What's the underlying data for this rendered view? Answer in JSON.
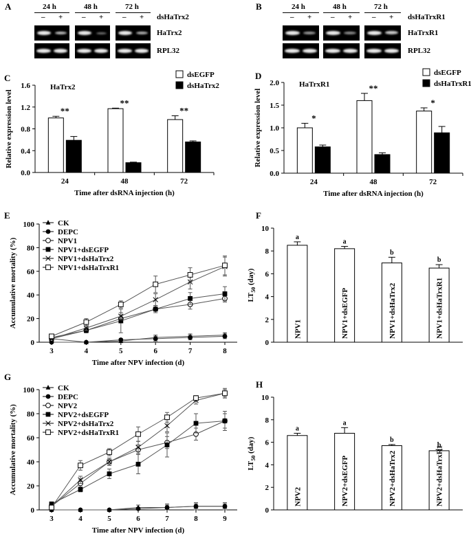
{
  "panels": {
    "A": {
      "letter": "A",
      "timepoints": [
        "24 h",
        "48 h",
        "72 h"
      ],
      "signs": [
        "–",
        "+"
      ],
      "treatment": "dsHaTrx2",
      "rows": [
        "HaTrx2",
        "RPL32"
      ]
    },
    "B": {
      "letter": "B",
      "timepoints": [
        "24 h",
        "48 h",
        "72 h"
      ],
      "signs": [
        "–",
        "+"
      ],
      "treatment": "dsHaTrxR1",
      "rows": [
        "HaTrxR1",
        "RPL32"
      ]
    }
  },
  "chart_data": [
    {
      "id": "C",
      "letter": "C",
      "type": "bar",
      "gene": "HaTrx2",
      "categories": [
        "24",
        "48",
        "72"
      ],
      "series": [
        {
          "name": "dsEGFP",
          "values": [
            1.0,
            1.17,
            0.97
          ],
          "errors": [
            0.03,
            0.01,
            0.07
          ]
        },
        {
          "name": "dsHaTrx2",
          "values": [
            0.59,
            0.18,
            0.56
          ],
          "errors": [
            0.07,
            0.01,
            0.02
          ]
        }
      ],
      "sig": [
        "**",
        "**",
        "**"
      ],
      "ylim": [
        0,
        1.6
      ],
      "yticks": [
        "0.0",
        "0.4",
        "0.8",
        "1.2",
        "1.6"
      ],
      "ylabel": "Relative expression level",
      "xlabel": "Time after dsRNA injection (h)"
    },
    {
      "id": "D",
      "letter": "D",
      "type": "bar",
      "gene": "HaTrxR1",
      "categories": [
        "24",
        "48",
        "72"
      ],
      "series": [
        {
          "name": "dsEGFP",
          "values": [
            1.0,
            1.6,
            1.37
          ],
          "errors": [
            0.1,
            0.16,
            0.07
          ]
        },
        {
          "name": "dsHaTrxR1",
          "values": [
            0.58,
            0.41,
            0.89
          ],
          "errors": [
            0.04,
            0.04,
            0.14
          ]
        }
      ],
      "sig": [
        "*",
        "**",
        "*"
      ],
      "ylim": [
        0,
        2.0
      ],
      "yticks": [
        "0.0",
        "0.5",
        "1.0",
        "1.5",
        "2.0"
      ],
      "ylabel": "Relative expression level",
      "xlabel": "Time after dsRNA injection (h)"
    },
    {
      "id": "E",
      "letter": "E",
      "type": "line",
      "x": [
        3,
        4,
        5,
        6,
        7,
        8
      ],
      "series": [
        {
          "name": "CK",
          "marker": "triangle",
          "values": [
            3,
            0,
            1,
            4,
            5,
            6
          ],
          "errors": [
            0,
            0,
            1,
            2,
            2,
            2
          ]
        },
        {
          "name": "DEPC",
          "marker": "dot",
          "values": [
            0,
            0,
            2,
            3,
            4,
            5
          ],
          "errors": [
            0,
            0,
            1,
            2,
            2,
            2
          ]
        },
        {
          "name": "NPV1",
          "marker": "open-circle",
          "values": [
            3,
            10,
            20,
            28,
            32,
            37
          ],
          "errors": [
            1,
            2,
            3,
            3,
            4,
            3
          ]
        },
        {
          "name": "NPV1+dsEGFP",
          "marker": "square",
          "values": [
            4,
            10,
            18,
            28,
            37,
            41
          ],
          "errors": [
            1,
            2,
            10,
            3,
            5,
            6
          ]
        },
        {
          "name": "NPV1+dsHaTrx2",
          "marker": "x",
          "values": [
            3,
            12,
            22,
            36,
            51,
            64
          ],
          "errors": [
            1,
            2,
            3,
            5,
            6,
            8
          ]
        },
        {
          "name": "NPV1+dsHaTrxR1",
          "marker": "open-square",
          "values": [
            5,
            17,
            32,
            49,
            57,
            65
          ],
          "errors": [
            1,
            3,
            3,
            7,
            6,
            8
          ]
        }
      ],
      "ylim": [
        0,
        100
      ],
      "yticks": [
        "0",
        "20",
        "40",
        "60",
        "80",
        "100"
      ],
      "ylabel": "Accumulative mortality (%)",
      "xlabel": "Time after NPV infection (d)"
    },
    {
      "id": "F",
      "letter": "F",
      "type": "bar",
      "categories": [
        "NPV1",
        "NPV1+dsEGFP",
        "NPV1+dsHaTrx2",
        "NPV1+dsHaTrxR1"
      ],
      "values": [
        8.5,
        8.2,
        6.95,
        6.5
      ],
      "errors": [
        0.3,
        0.2,
        0.5,
        0.3
      ],
      "letters": [
        "a",
        "a",
        "b",
        "b"
      ],
      "ylim": [
        0,
        10
      ],
      "yticks": [
        "0",
        "2",
        "4",
        "6",
        "8",
        "10"
      ],
      "ylabel": "LT50 (day)"
    },
    {
      "id": "G",
      "letter": "G",
      "type": "line",
      "x": [
        3,
        4,
        5,
        6,
        7,
        8,
        9
      ],
      "series": [
        {
          "name": "CK",
          "marker": "triangle",
          "values": [
            0,
            0,
            0,
            2,
            2,
            3,
            3
          ],
          "errors": [
            0,
            0,
            0,
            2,
            3,
            3,
            3
          ]
        },
        {
          "name": "DEPC",
          "marker": "dot",
          "values": [
            0,
            0,
            0,
            1,
            2,
            3,
            3
          ],
          "errors": [
            0,
            0,
            0,
            1,
            2,
            2,
            2
          ]
        },
        {
          "name": "NPV2",
          "marker": "open-circle",
          "values": [
            3,
            22,
            40,
            50,
            56,
            63,
            74
          ],
          "errors": [
            1,
            3,
            3,
            4,
            5,
            5,
            6
          ]
        },
        {
          "name": "NPV2+dsEGFP",
          "marker": "square",
          "values": [
            5,
            17,
            30,
            38,
            54,
            72,
            74
          ],
          "errors": [
            1,
            2,
            4,
            8,
            10,
            8,
            8
          ]
        },
        {
          "name": "NPV2+dsHaTrx2",
          "marker": "x",
          "values": [
            3,
            25,
            40,
            52,
            70,
            91,
            97
          ],
          "errors": [
            1,
            3,
            3,
            5,
            5,
            3,
            3
          ]
        },
        {
          "name": "NPV2+dsHaTrxR1",
          "marker": "open-square",
          "values": [
            2,
            37,
            48,
            63,
            77,
            93,
            97
          ],
          "errors": [
            1,
            4,
            3,
            6,
            4,
            2,
            4
          ]
        }
      ],
      "ylim": [
        0,
        100
      ],
      "yticks": [
        "0",
        "20",
        "40",
        "60",
        "80",
        "100"
      ],
      "ylabel": "Accumulative mortality (%)",
      "xlabel": "Time after NPV infection (d)"
    },
    {
      "id": "H",
      "letter": "H",
      "type": "bar",
      "categories": [
        "NPV2",
        "NPV2+dsEGFP",
        "NPV2+dsHaTrx2",
        "NPV2+dsHaTrxR1"
      ],
      "values": [
        6.6,
        6.8,
        5.7,
        5.25
      ],
      "errors": [
        0.2,
        0.5,
        0.1,
        0.1
      ],
      "letters": [
        "a",
        "a",
        "b",
        "b"
      ],
      "ylim": [
        0,
        10
      ],
      "yticks": [
        "0",
        "2",
        "4",
        "6",
        "8",
        "10"
      ],
      "ylabel": "LT50 (day)"
    }
  ]
}
